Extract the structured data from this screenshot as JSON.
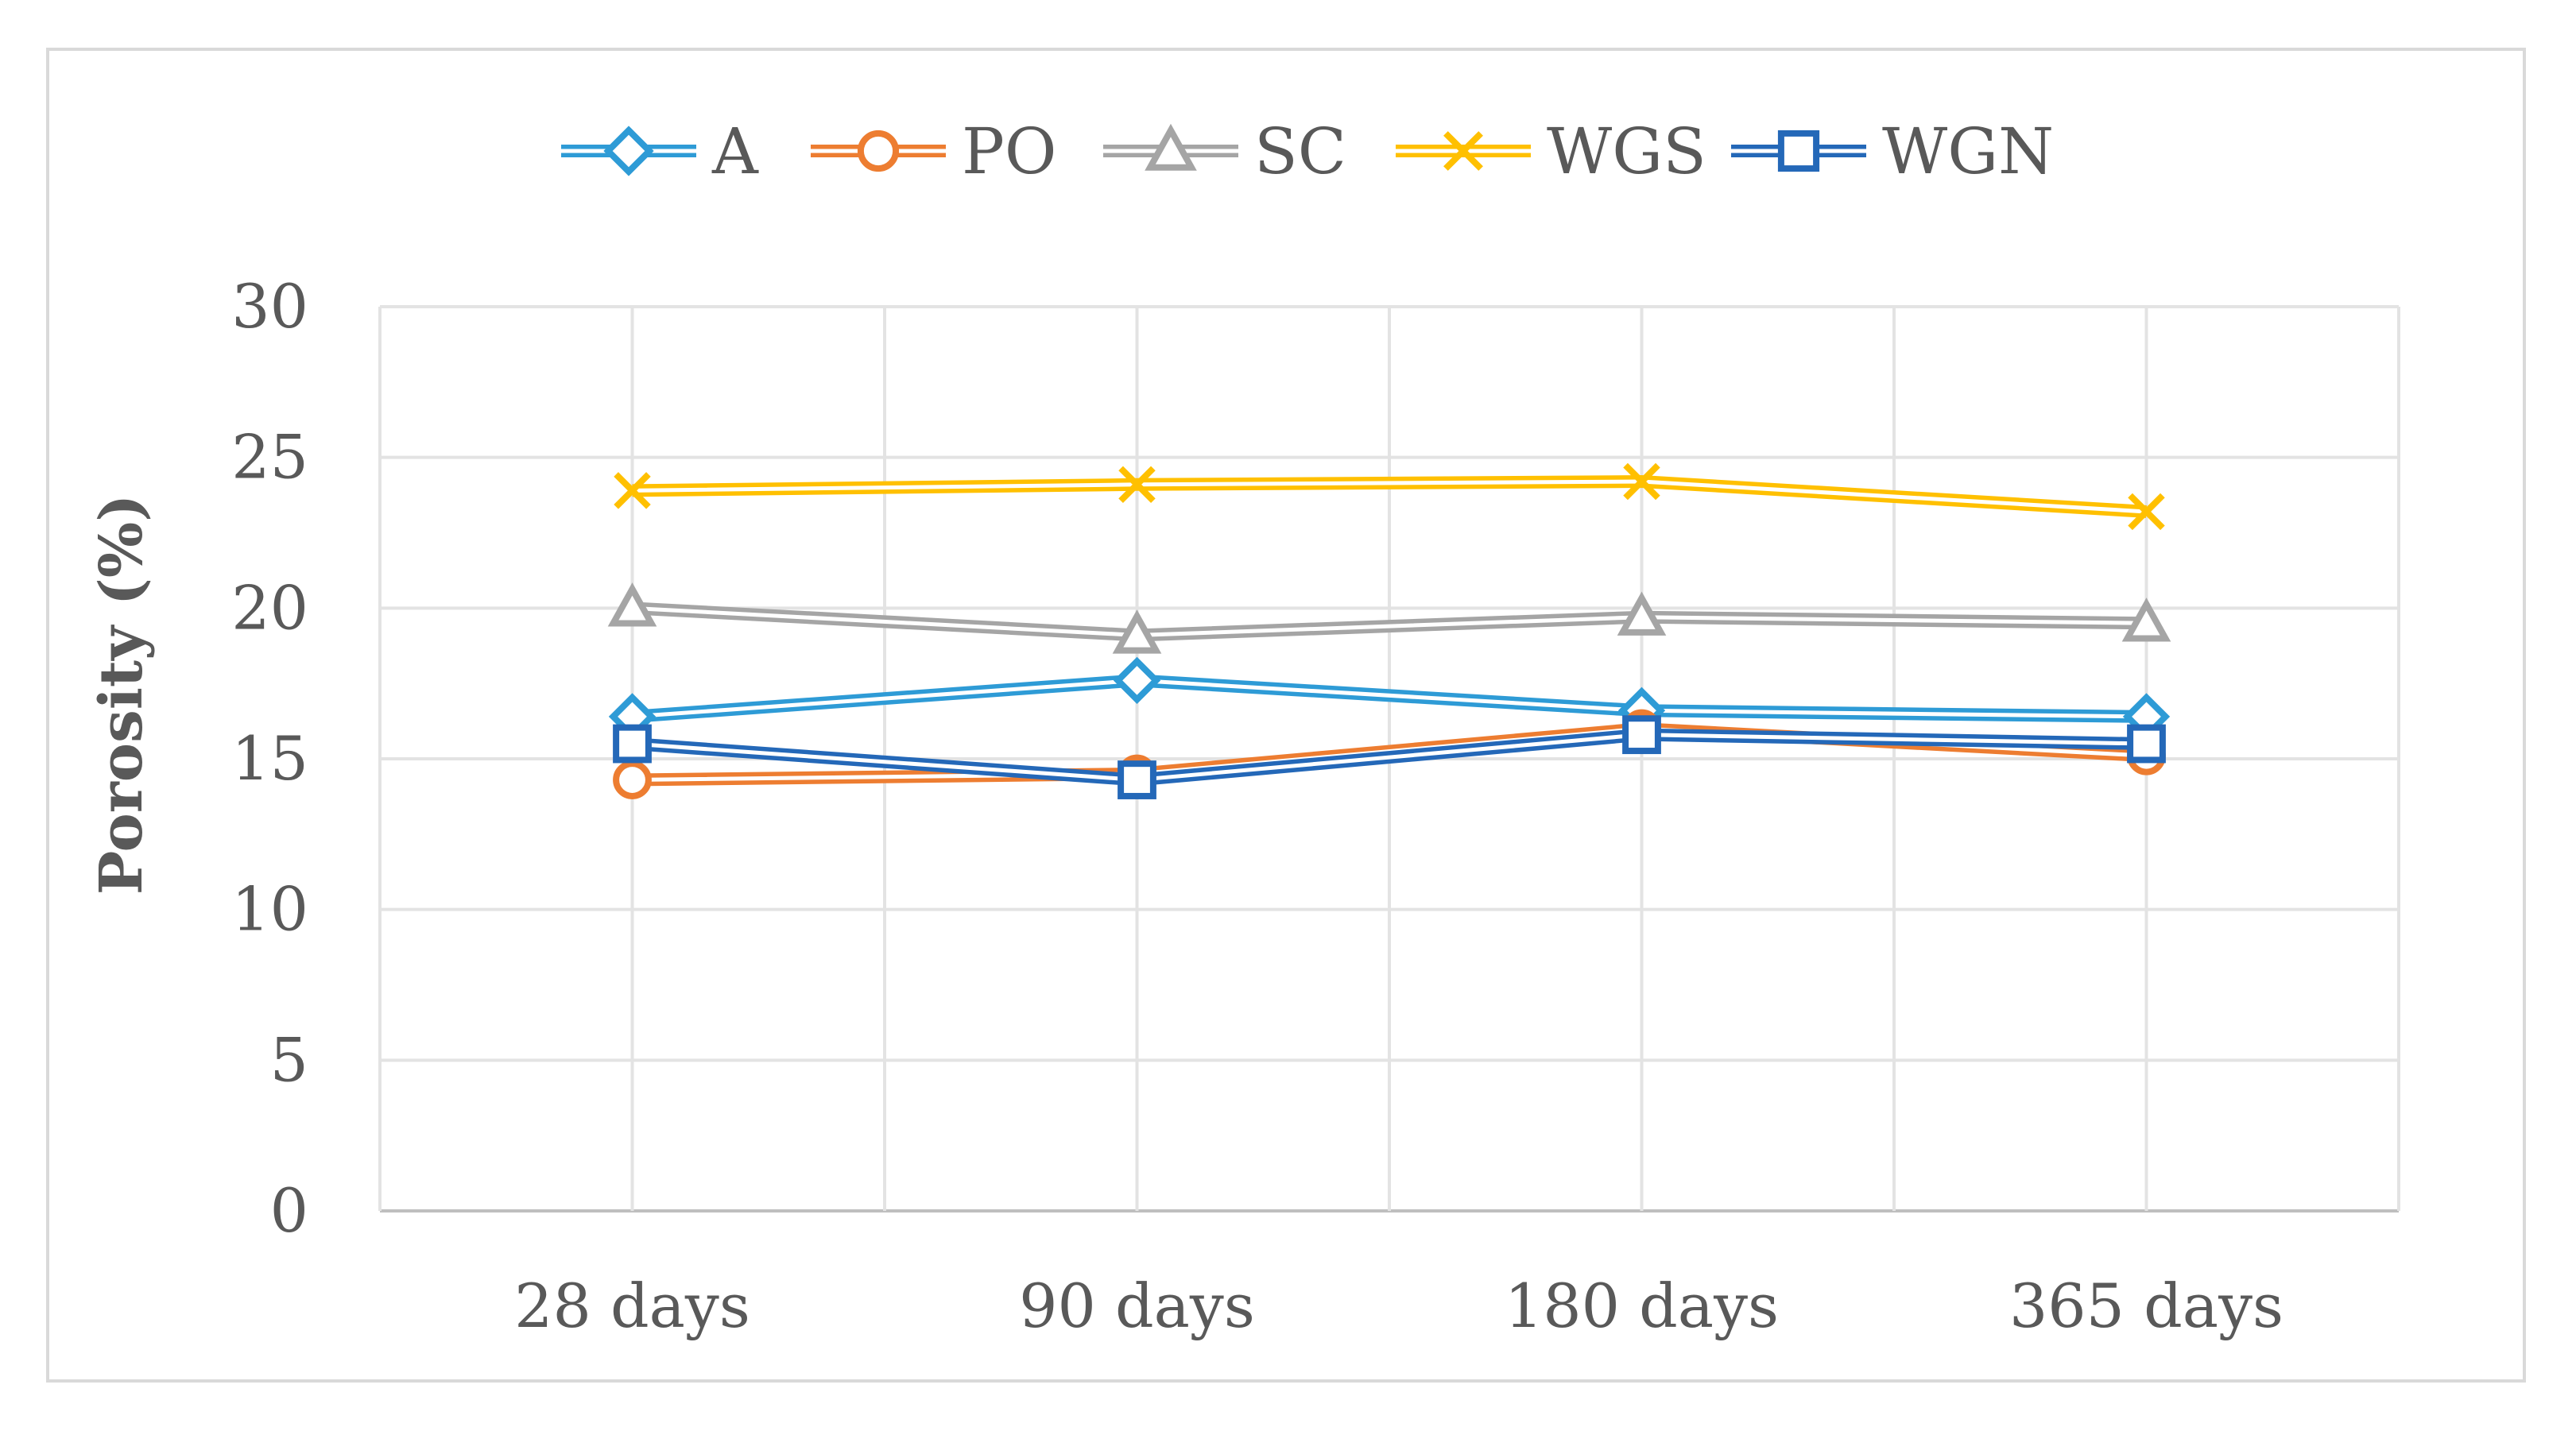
{
  "chart_data": {
    "type": "line",
    "title": "",
    "xlabel": "",
    "ylabel": "Porosity (%)",
    "categories": [
      "28 days",
      "90 days",
      "180 days",
      "365 days"
    ],
    "ylim": [
      0,
      30
    ],
    "yticks": [
      0,
      5,
      10,
      15,
      20,
      25,
      30
    ],
    "grid": true,
    "legend": "top",
    "series": [
      {
        "name": "A",
        "values": [
          16.4,
          17.6,
          16.6,
          16.4
        ],
        "color": "#2e9bd6",
        "marker": "diamond"
      },
      {
        "name": "PO",
        "values": [
          14.3,
          14.5,
          16.0,
          15.1
        ],
        "color": "#ed7d31",
        "marker": "circle"
      },
      {
        "name": "SC",
        "values": [
          20.0,
          19.1,
          19.7,
          19.5
        ],
        "color": "#a5a5a5",
        "marker": "triangle"
      },
      {
        "name": "WGS",
        "values": [
          23.9,
          24.1,
          24.2,
          23.2
        ],
        "color": "#ffc000",
        "marker": "x"
      },
      {
        "name": "WGN",
        "values": [
          15.5,
          14.3,
          15.8,
          15.5
        ],
        "color": "#2468b8",
        "marker": "square"
      }
    ]
  }
}
